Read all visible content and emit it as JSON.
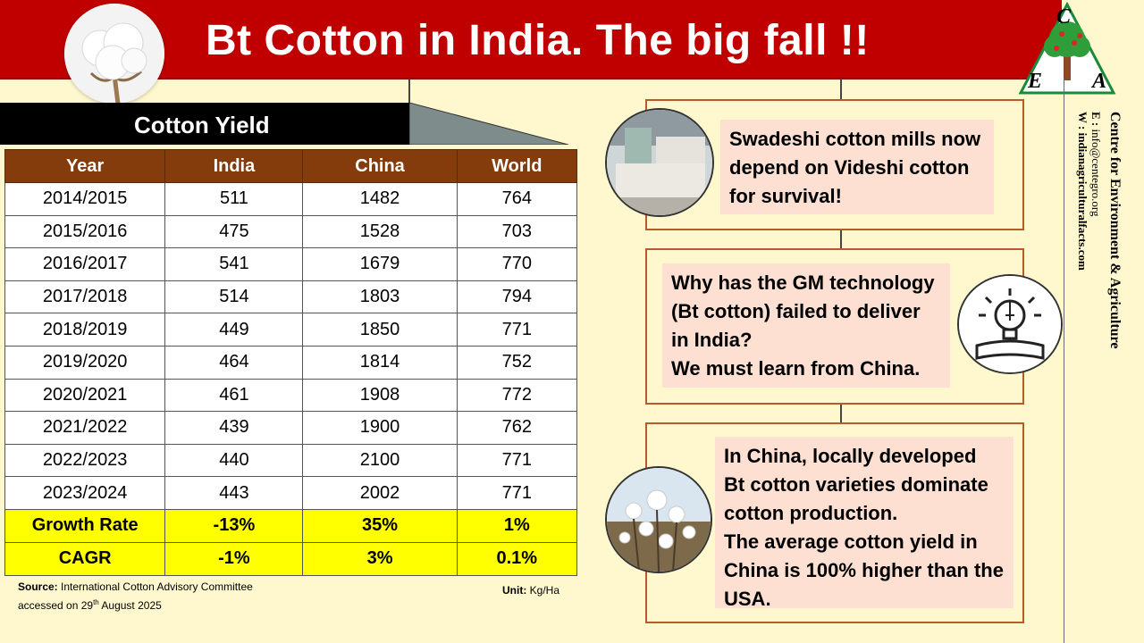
{
  "header": {
    "title": "Bt Cotton in India. The big fall !!"
  },
  "logo": {
    "letters": [
      "C",
      "E",
      "A"
    ],
    "icon": "tree-logo-icon"
  },
  "sidebar": {
    "org_name": "Centre for Environment & Agriculture",
    "email_label": "E :",
    "email": "info@centegro.org",
    "web_label": "W :",
    "web": "indianagriculturalfacts.com"
  },
  "yield_table": {
    "title": "Cotton Yield",
    "headers": [
      "Year",
      "India",
      "China",
      "World"
    ],
    "rows": [
      [
        "2014/2015",
        "511",
        "1482",
        "764"
      ],
      [
        "2015/2016",
        "475",
        "1528",
        "703"
      ],
      [
        "2016/2017",
        "541",
        "1679",
        "770"
      ],
      [
        "2017/2018",
        "514",
        "1803",
        "794"
      ],
      [
        "2018/2019",
        "449",
        "1850",
        "771"
      ],
      [
        "2019/2020",
        "464",
        "1814",
        "752"
      ],
      [
        "2020/2021",
        "461",
        "1908",
        "772"
      ],
      [
        "2021/2022",
        "439",
        "1900",
        "762"
      ],
      [
        "2022/2023",
        "440",
        "2100",
        "771"
      ],
      [
        "2023/2024",
        "443",
        "2002",
        "771"
      ]
    ],
    "summary": [
      [
        "Growth Rate",
        "-13%",
        "35%",
        "1%"
      ],
      [
        "CAGR",
        "-1%",
        "3%",
        "0.1%"
      ]
    ]
  },
  "source": {
    "label": "Source:",
    "text": "International Cotton Advisory Committee",
    "accessed_prefix": "accessed on 29",
    "accessed_sup": "th",
    "accessed_suffix": " August 2025"
  },
  "unit": {
    "label": "Unit:",
    "value": "Kg/Ha"
  },
  "panels": {
    "p1": {
      "lines": [
        "Swadeshi cotton mills now",
        "depend on Videshi cotton",
        "for survival!"
      ],
      "icon": "cotton-mill-icon"
    },
    "p2": {
      "lines": [
        "Why has the GM technology",
        "(Bt cotton) failed to deliver",
        "in India?",
        "We must learn from China."
      ],
      "icon": "lightbulb-icon"
    },
    "p3": {
      "lines": [
        "In China, locally developed",
        "Bt cotton varieties dominate",
        "cotton production.",
        "The average cotton yield in",
        "China is 100% higher than the",
        "USA."
      ],
      "icon": "cotton-field-icon"
    }
  },
  "colors": {
    "header_red": "#c00000",
    "table_header_brown": "#843c0c",
    "summary_yellow": "#ffff00",
    "panel_fill": "#fde0d2",
    "background": "#fff8cf"
  }
}
